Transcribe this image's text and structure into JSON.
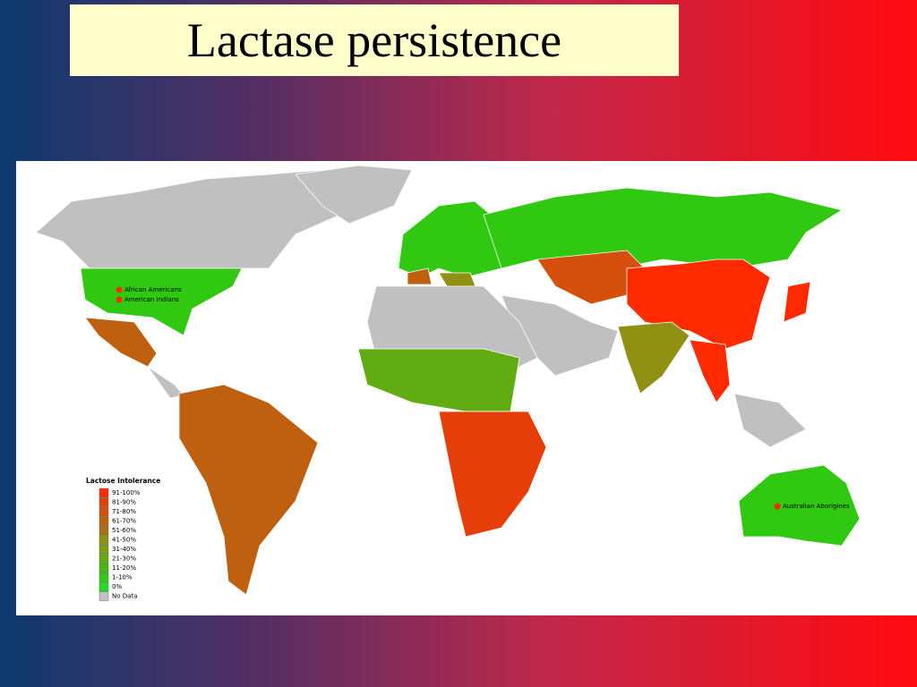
{
  "title": "Lactase persistence",
  "map": {
    "legend": {
      "title": "Lactose Intolerance",
      "items": [
        {
          "label": "91-100%",
          "color": "#ff2a00"
        },
        {
          "label": "81-90%",
          "color": "#e63e08"
        },
        {
          "label": "71-80%",
          "color": "#d4500c"
        },
        {
          "label": "61-70%",
          "color": "#bf6010"
        },
        {
          "label": "51-60%",
          "color": "#a87012"
        },
        {
          "label": "41-50%",
          "color": "#909012"
        },
        {
          "label": "31-40%",
          "color": "#78a012"
        },
        {
          "label": "21-30%",
          "color": "#60ac12"
        },
        {
          "label": "11-20%",
          "color": "#44ba10"
        },
        {
          "label": "1-10%",
          "color": "#30c810"
        },
        {
          "label": "0%",
          "color": "#20e020"
        },
        {
          "label": "No Data",
          "color": "#c0c0c0"
        }
      ]
    },
    "annotations": [
      "African Americans",
      "American Indians",
      "Australian Aborigines"
    ]
  }
}
